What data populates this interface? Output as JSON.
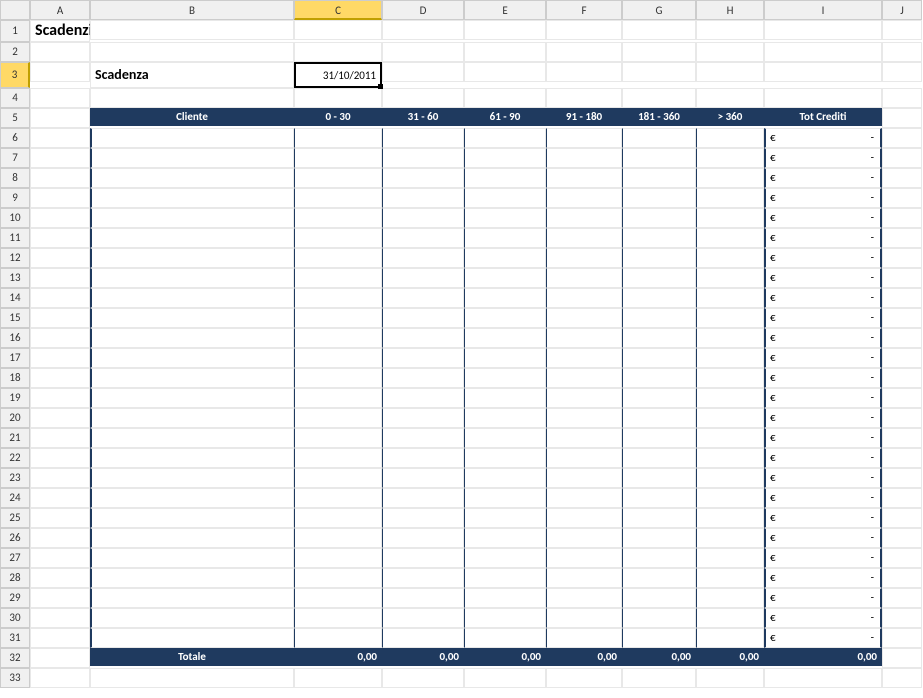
{
  "col_headers": [
    "A",
    "B",
    "C",
    "D",
    "E",
    "F",
    "G",
    "H",
    "I",
    "J"
  ],
  "selected_col_index": 2,
  "selected_row": 3,
  "row_count": 33,
  "title": "Scadenziario crediti",
  "scadenza_label": "Scadenza",
  "scadenza_value": "31/10/2011",
  "table_headers": {
    "cliente": "Cliente",
    "r0_30": "0  -  30",
    "r31_60": "31 - 60",
    "r61_90": "61 - 90",
    "r91_180": "91 - 180",
    "r181_360": "181 - 360",
    "gt360": "> 360",
    "tot": "Tot Crediti"
  },
  "data_rows_start": 6,
  "data_rows_end": 31,
  "currency_symbol": "€",
  "empty_value": "-",
  "totale_label": "Totale",
  "totale_values": [
    "0,00",
    "0,00",
    "0,00",
    "0,00",
    "0,00",
    "0,00",
    "0,00"
  ],
  "colors": {
    "header_bg": "#1f3a5f",
    "header_fg": "#ffffff",
    "selected_bg": "#ffd966",
    "grid_border": "#e8e8e8",
    "sheet_header_bg": "#f0f0f0",
    "sheet_header_border": "#cccccc"
  }
}
